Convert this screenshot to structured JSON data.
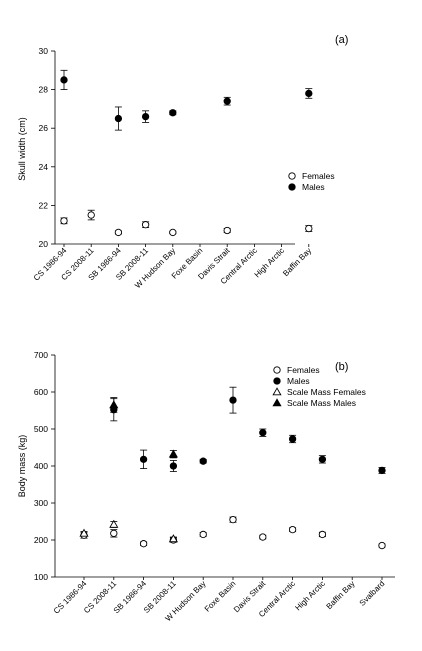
{
  "chart_data": [
    {
      "type": "scatter",
      "panel_label": "(a)",
      "ylabel": "Skull width (cm)",
      "ylim": [
        20,
        30
      ],
      "yticks": [
        20,
        22,
        24,
        26,
        28,
        30
      ],
      "categories": [
        "CS 1986-94",
        "CS 2008-11",
        "SB 1986-94",
        "SB 2008-11",
        "W Hudson Bay",
        "Foxe Basin",
        "Davis Strait",
        "Central Arctic",
        "High Arctic",
        "Baffin Bay"
      ],
      "legend": {
        "position": "right",
        "entries": [
          "Females",
          "Males"
        ]
      },
      "series": [
        {
          "name": "Females",
          "marker": "circle-open",
          "values": [
            21.2,
            21.5,
            20.6,
            21.0,
            20.6,
            null,
            20.7,
            null,
            null,
            20.8
          ],
          "err": [
            0.15,
            0.25,
            0.08,
            0.15,
            0.06,
            null,
            0.1,
            null,
            null,
            0.15
          ]
        },
        {
          "name": "Males",
          "marker": "circle-filled",
          "values": [
            28.5,
            null,
            26.5,
            26.6,
            26.8,
            null,
            27.4,
            null,
            null,
            27.8
          ],
          "err": [
            0.5,
            null,
            0.6,
            0.3,
            0.1,
            null,
            0.2,
            null,
            null,
            0.25
          ]
        }
      ]
    },
    {
      "type": "scatter",
      "panel_label": "(b)",
      "ylabel": "Body mass (kg)",
      "ylim": [
        100,
        700
      ],
      "yticks": [
        100,
        200,
        300,
        400,
        500,
        600,
        700
      ],
      "categories": [
        "CS 1986-94",
        "CS 2008-11",
        "SB 1986-94",
        "SB 2008-11",
        "W Hudson Bay",
        "Foxe Basin",
        "Davis Strait",
        "Central Arctic",
        "High Arctic",
        "Baffin Bay",
        "Svalbard"
      ],
      "legend": {
        "position": "top-right",
        "entries": [
          "Females",
          "Males",
          "Scale Mass Females",
          "Scale Mass Males"
        ]
      },
      "series": [
        {
          "name": "Females",
          "marker": "circle-open",
          "values": [
            213,
            218,
            190,
            200,
            215,
            255,
            208,
            228,
            215,
            null,
            185
          ],
          "err": [
            8,
            10,
            5,
            6,
            5,
            7,
            5,
            5,
            6,
            null,
            4
          ]
        },
        {
          "name": "Males",
          "marker": "circle-filled",
          "values": [
            null,
            552,
            418,
            400,
            413,
            578,
            490,
            473,
            418,
            null,
            388
          ],
          "err": [
            null,
            30,
            25,
            15,
            5,
            35,
            10,
            10,
            10,
            null,
            8
          ]
        },
        {
          "name": "Scale Mass Females",
          "marker": "triangle-open",
          "values": [
            218,
            242,
            null,
            203,
            null,
            null,
            null,
            null,
            null,
            null,
            null
          ],
          "err": [
            5,
            8,
            null,
            5,
            null,
            null,
            null,
            null,
            null,
            null,
            null
          ]
        },
        {
          "name": "Scale Mass Males",
          "marker": "triangle-filled",
          "values": [
            null,
            565,
            null,
            432,
            null,
            null,
            null,
            null,
            null,
            null,
            null
          ],
          "err": [
            null,
            20,
            null,
            10,
            null,
            null,
            null,
            null,
            null,
            null,
            null
          ]
        }
      ]
    }
  ]
}
